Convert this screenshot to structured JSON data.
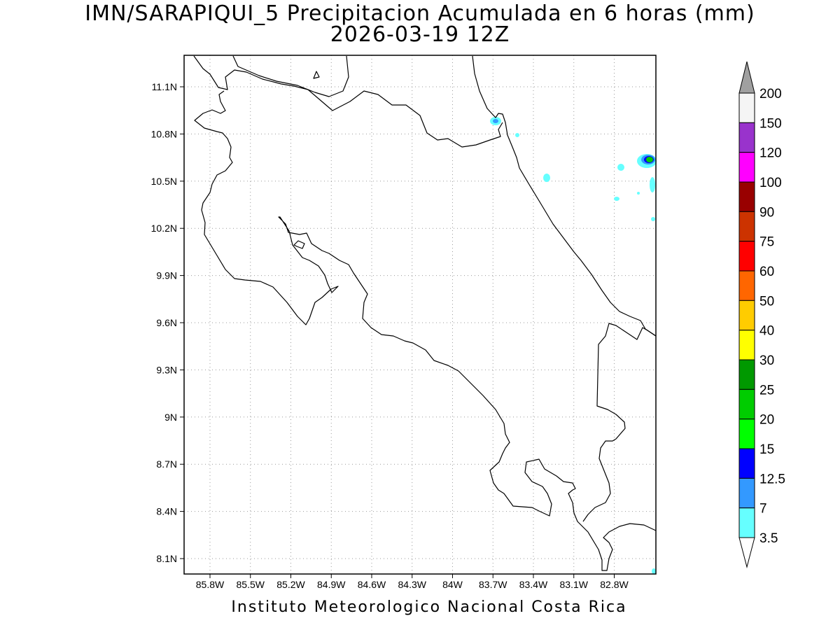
{
  "title": {
    "line1": "IMN/SARAPIQUI_5 Precipitacion Acumulada en 6 horas (mm)",
    "line2": "2026-03-19 12Z"
  },
  "footer": "Instituto Meteorologico Nacional Costa Rica",
  "map": {
    "lon_ticks": [
      "85.8W",
      "85.5W",
      "85.2W",
      "84.9W",
      "84.6W",
      "84.3W",
      "84W",
      "83.7W",
      "83.4W",
      "83.1W",
      "82.8W"
    ],
    "lat_ticks": [
      "11.1N",
      "10.8N",
      "10.5N",
      "10.2N",
      "9.9N",
      "9.6N",
      "9.3N",
      "9N",
      "8.7N",
      "8.4N",
      "8.1N"
    ],
    "grid": "dotted"
  },
  "colorbar": {
    "labels": [
      "200",
      "150",
      "120",
      "100",
      "90",
      "75",
      "60",
      "50",
      "40",
      "30",
      "25",
      "20",
      "15",
      "12.5",
      "7",
      "3.5"
    ],
    "colors": [
      "#f5f5f5",
      "#9933cc",
      "#ff00ff",
      "#990000",
      "#cc3300",
      "#ff0000",
      "#ff6600",
      "#ffcc00",
      "#ffff00",
      "#009900",
      "#00cc00",
      "#00ff00",
      "#0000ff",
      "#3399ff",
      "#66ffff"
    ],
    "over_color": "#a0a0a0",
    "under_color": "#ffffff"
  }
}
